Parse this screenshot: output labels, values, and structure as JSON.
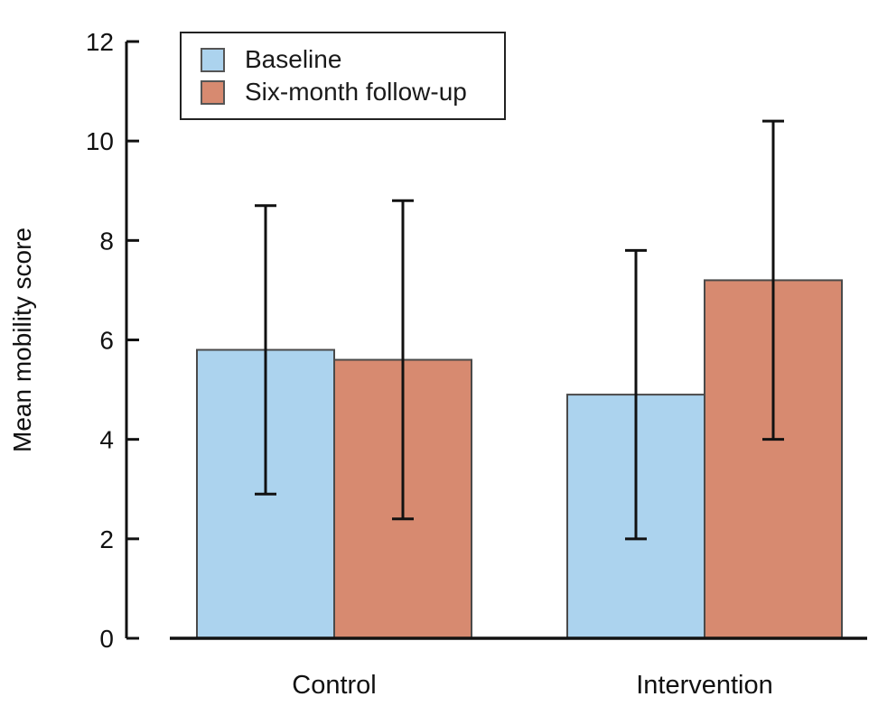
{
  "figure": {
    "background_color": "#ffffff",
    "text_color": "#111111"
  },
  "chart_data": {
    "type": "bar",
    "title": "",
    "categories": [
      "Control",
      "Intervention"
    ],
    "series": [
      {
        "name": "Baseline",
        "color": "#ACD3EE",
        "values": [
          5.8,
          4.9
        ],
        "errors": [
          2.9,
          2.9
        ],
        "error_ranges": [
          [
            2.9,
            8.7
          ],
          [
            2.0,
            7.8
          ]
        ]
      },
      {
        "name": "Six-month follow-up",
        "color": "#D78A70",
        "values": [
          5.6,
          7.2
        ],
        "errors": [
          3.2,
          3.2
        ],
        "error_ranges": [
          [
            2.4,
            8.8
          ],
          [
            4.0,
            10.4
          ]
        ]
      }
    ],
    "xlabel": "",
    "ylabel": "Mean mobility score",
    "ylim": [
      0,
      12
    ],
    "yticks": [
      0,
      2,
      4,
      6,
      8,
      10,
      12
    ],
    "grid": false,
    "error_bars": true,
    "legend_position": "top-left",
    "bar_edge_color": "#4a4a4a",
    "error_bar_color": "#111111",
    "axis_color": "#111111"
  }
}
